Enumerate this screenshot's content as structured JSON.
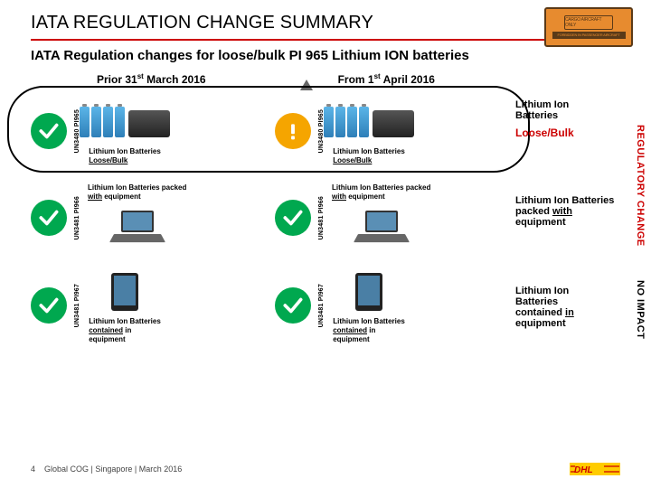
{
  "title": "IATA REGULATION CHANGE SUMMARY",
  "subtitle": "IATA Regulation changes for loose/bulk PI 965 Lithium ION batteries",
  "columns": {
    "prior": "Prior 31",
    "prior_sup": "st",
    "prior_tail": " March 2016",
    "from": "From 1",
    "from_sup": "st",
    "from_tail": " April 2016"
  },
  "rows": [
    {
      "code": "UN3480 PI965",
      "prior": {
        "status": "ok",
        "color_bg": "#00a84f",
        "caption_a": "Lithium Ion Batteries",
        "caption_b": "Loose/Bulk",
        "pic": "batt-slab"
      },
      "from": {
        "status": "warn",
        "color_bg": "#f5a500",
        "caption_a": "Lithium Ion Batteries",
        "caption_b": "Loose/Bulk",
        "pic": "batt-slab"
      },
      "right_a": "Lithium Ion",
      "right_b": "Batteries",
      "right_c": "Loose/Bulk",
      "right_color": "#cc0000"
    },
    {
      "code": "UN3481 PI966",
      "prior": {
        "status": "ok",
        "color_bg": "#00a84f",
        "caption_a": "Lithium Ion Batteries packed",
        "caption_b": "with equipment",
        "pic": "laptop"
      },
      "from": {
        "status": "ok",
        "color_bg": "#00a84f",
        "caption_a": "Lithium Ion Batteries packed",
        "caption_b": "with equipment",
        "pic": "laptop"
      },
      "right_a": "Lithium Ion Batteries",
      "right_b": "packed with",
      "right_c": "equipment",
      "right_color": "#000000"
    },
    {
      "code": "UN3481 PI967",
      "prior": {
        "status": "ok",
        "color_bg": "#00a84f",
        "caption_a": "Lithium Ion Batteries",
        "caption_b": "contained in",
        "caption_c": "equipment",
        "pic": "tablet"
      },
      "from": {
        "status": "ok",
        "color_bg": "#00a84f",
        "caption_a": "Lithium Ion Batteries",
        "caption_b": "contained in",
        "caption_c": "equipment",
        "pic": "tablet"
      },
      "right_a": "Lithium Ion",
      "right_b": "Batteries",
      "right_c": "contained in",
      "right_d": "equipment",
      "right_color": "#000000"
    }
  ],
  "side": {
    "reg": "REGULATORY CHANGE",
    "noimpact": "NO IMPACT",
    "reg_color": "#cc0000",
    "ni_color": "#000000"
  },
  "footer": {
    "page": "4",
    "text": "Global COG | Singapore | March 2016"
  },
  "colors": {
    "rule": "#cc0000",
    "ok": "#00a84f",
    "warn": "#f5a500"
  },
  "stamp": {
    "top": "CARGO AIRCRAFT ONLY",
    "bottom": "FORBIDDEN IN PASSENGER AIRCRAFT"
  }
}
